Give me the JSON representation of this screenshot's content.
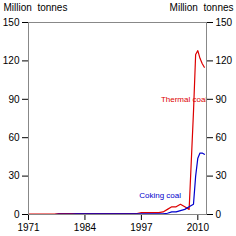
{
  "chart_data": {
    "type": "line",
    "ylabel": "Million  tonnes",
    "y2label": "Million  tonnes",
    "x": [
      1971,
      1972,
      1973,
      1974,
      1975,
      1976,
      1977,
      1978,
      1979,
      1980,
      1981,
      1982,
      1983,
      1984,
      1985,
      1986,
      1987,
      1988,
      1989,
      1990,
      1991,
      1992,
      1993,
      1994,
      1995,
      1996,
      1997,
      1998,
      1999,
      2000,
      2001,
      2002,
      2003,
      2004,
      2005,
      2006,
      2007,
      2008,
      2009,
      2009.5,
      2010,
      2010.5,
      2011,
      2011.5
    ],
    "series": [
      {
        "color": "#dd0000",
        "values": [
          0.3,
          0.3,
          0.3,
          0.3,
          0.3,
          0.3,
          0.3,
          0.8,
          0.8,
          0.8,
          0.8,
          0.8,
          0.8,
          0.8,
          0.8,
          0.8,
          0.8,
          0.8,
          0.8,
          0.8,
          0.8,
          0.8,
          0.8,
          0.8,
          0.8,
          0.8,
          1.5,
          1.5,
          1.5,
          1.5,
          1.5,
          2,
          4,
          6,
          6,
          8,
          6,
          4,
          80,
          125,
          128,
          122,
          118,
          115
        ]
      },
      {
        "color": "#0000cc",
        "values": [
          0,
          0,
          0,
          0,
          0,
          0,
          0,
          0.3,
          0.3,
          0.3,
          0.3,
          0.5,
          0.5,
          0.5,
          0.5,
          0.5,
          0.5,
          0.5,
          0.5,
          0.5,
          0.5,
          0.5,
          0.5,
          0.5,
          0.5,
          0.5,
          0.5,
          0.5,
          0.5,
          0.5,
          0.5,
          0.5,
          1,
          2,
          2,
          3,
          4,
          6,
          8,
          30,
          44,
          48,
          48,
          47
        ]
      }
    ],
    "annotations": [
      {
        "text": "Thermal coal",
        "x": 2001.5,
        "y": 88,
        "color": "#dd0000"
      },
      {
        "text": "Coking coal",
        "x": 1996.5,
        "y": 13,
        "color": "#0000cc"
      }
    ],
    "xlim": [
      1971,
      2012
    ],
    "xticks": [
      1971,
      1984,
      1997,
      2010
    ],
    "ylim": [
      0,
      150
    ],
    "yticks": [
      0,
      30,
      60,
      90,
      120,
      150
    ],
    "y2lim": [
      0,
      150
    ],
    "y2ticks": [
      0,
      30,
      60,
      90,
      120,
      150
    ],
    "grid": false
  }
}
